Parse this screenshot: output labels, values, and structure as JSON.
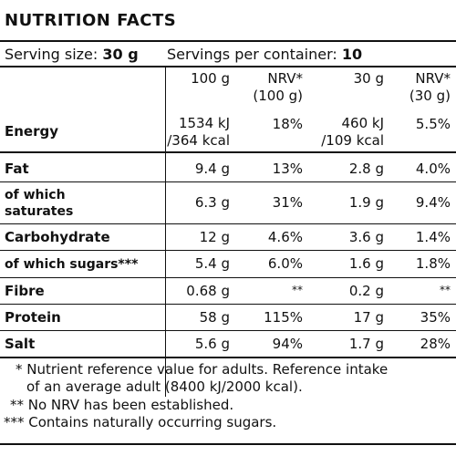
{
  "title": "NUTRITION FACTS",
  "serving": {
    "size_label": "Serving size:",
    "size_value": "30 g",
    "per_container_label": "Servings per container:",
    "per_container_value": "10"
  },
  "columns": {
    "per100": "100 g",
    "nrv100_line1": "NRV*",
    "nrv100_line2": "(100 g)",
    "per30": "30 g",
    "nrv30_line1": "NRV*",
    "nrv30_line2": "(30 g)"
  },
  "rows": [
    {
      "label": "Energy",
      "per100_line1": "1534 kJ",
      "per100_line2": "/364 kcal",
      "nrv100": "18%",
      "per30_line1": "460 kJ",
      "per30_line2": "/109 kcal",
      "nrv30": "5.5%"
    },
    {
      "label": "Fat",
      "per100": "9.4 g",
      "nrv100": "13%",
      "per30": "2.8 g",
      "nrv30": "4.0%"
    },
    {
      "label_line1": "of which",
      "label_line2": "saturates",
      "per100": "6.3 g",
      "nrv100": "31%",
      "per30": "1.9 g",
      "nrv30": "9.4%"
    },
    {
      "label": "Carbohydrate",
      "per100": "12 g",
      "nrv100": "4.6%",
      "per30": "3.6 g",
      "nrv30": "1.4%"
    },
    {
      "label": "of which sugars***",
      "per100": "5.4 g",
      "nrv100": "6.0%",
      "per30": "1.6 g",
      "nrv30": "1.8%"
    },
    {
      "label": "Fibre",
      "per100": "0.68 g",
      "nrv100": "**",
      "per30": "0.2 g",
      "nrv30": "**"
    },
    {
      "label": "Protein",
      "per100": "58 g",
      "nrv100": "115%",
      "per30": "17 g",
      "nrv30": "35%"
    },
    {
      "label": "Salt",
      "per100": "5.6 g",
      "nrv100": "94%",
      "per30": "1.7 g",
      "nrv30": "28%"
    }
  ],
  "footnotes": {
    "nrv_line1": "* Nutrient reference value for adults. Reference intake",
    "nrv_line2": "of an average adult (8400 kJ/2000 kcal).",
    "no_nrv": "** No NRV has been established.",
    "sugars": "*** Contains naturally occurring sugars."
  }
}
